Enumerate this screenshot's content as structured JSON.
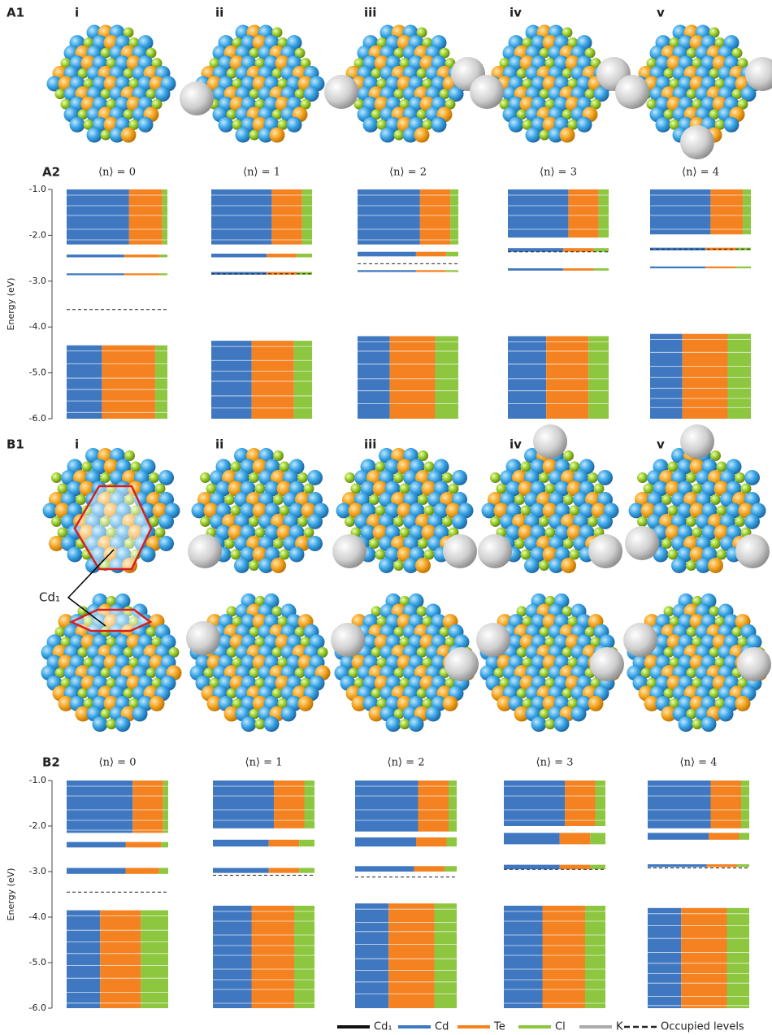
{
  "panel_labels": {
    "A1": "A1",
    "A2": "A2",
    "B1": "B1",
    "B2": "B2"
  },
  "structure_labels": [
    "i",
    "ii",
    "iii",
    "iv",
    "v"
  ],
  "site_label": "Cd₁",
  "chart_data": [
    {
      "type": "energy-levels",
      "ylabel": "Energy (eV)",
      "ylim": [
        -6,
        -1
      ],
      "yticks": [
        {
          "value": -1,
          "label": "-1.0"
        },
        {
          "value": -2,
          "label": "-2.0"
        },
        {
          "value": -3,
          "label": "-3.0"
        },
        {
          "value": -4,
          "label": "-4.0"
        },
        {
          "value": -5,
          "label": "-5.0"
        },
        {
          "value": -6,
          "label": "-6.0"
        }
      ],
      "panels": [
        {
          "title": "⟨n⟩ = 0",
          "occupied": -3.62,
          "blocks": [
            {
              "range": [
                -1.0,
                -2.2
              ],
              "fractions": [
                0.62,
                0.33,
                0.05
              ]
            },
            {
              "range": [
                -2.42,
                -2.48
              ],
              "fractions": [
                0.57,
                0.35,
                0.08
              ]
            },
            {
              "range": [
                -2.83,
                -2.87
              ],
              "fractions": [
                0.57,
                0.35,
                0.08
              ]
            },
            {
              "range": [
                -4.4,
                -6.0
              ],
              "fractions": [
                0.35,
                0.53,
                0.12
              ]
            }
          ]
        },
        {
          "title": "⟨n⟩ = 1",
          "occupied": -2.84,
          "blocks": [
            {
              "range": [
                -1.0,
                -2.2
              ],
              "fractions": [
                0.6,
                0.3,
                0.1
              ]
            },
            {
              "range": [
                -2.4,
                -2.48
              ],
              "fractions": [
                0.55,
                0.3,
                0.15
              ]
            },
            {
              "range": [
                -2.8,
                -2.86
              ],
              "fractions": [
                0.55,
                0.3,
                0.15
              ]
            },
            {
              "range": [
                -4.3,
                -6.0
              ],
              "fractions": [
                0.4,
                0.42,
                0.18
              ]
            }
          ]
        },
        {
          "title": "⟨n⟩ = 2",
          "occupied": -2.62,
          "blocks": [
            {
              "range": [
                -1.0,
                -2.2
              ],
              "fractions": [
                0.62,
                0.3,
                0.08
              ]
            },
            {
              "range": [
                -2.36,
                -2.46
              ],
              "fractions": [
                0.58,
                0.3,
                0.12
              ]
            },
            {
              "range": [
                -2.76,
                -2.8
              ],
              "fractions": [
                0.58,
                0.3,
                0.12
              ]
            },
            {
              "range": [
                -4.2,
                -6.0
              ],
              "fractions": [
                0.32,
                0.45,
                0.23
              ]
            }
          ]
        },
        {
          "title": "⟨n⟩ = 3",
          "occupied": -2.36,
          "blocks": [
            {
              "range": [
                -1.0,
                -2.05
              ],
              "fractions": [
                0.6,
                0.3,
                0.1
              ]
            },
            {
              "range": [
                -2.28,
                -2.36
              ],
              "fractions": [
                0.55,
                0.3,
                0.15
              ]
            },
            {
              "range": [
                -2.72,
                -2.77
              ],
              "fractions": [
                0.55,
                0.3,
                0.15
              ]
            },
            {
              "range": [
                -4.2,
                -6.0
              ],
              "fractions": [
                0.38,
                0.42,
                0.2
              ]
            }
          ]
        },
        {
          "title": "⟨n⟩ = 4",
          "occupied": -2.3,
          "blocks": [
            {
              "range": [
                -1.0,
                -1.98
              ],
              "fractions": [
                0.6,
                0.32,
                0.08
              ]
            },
            {
              "range": [
                -2.27,
                -2.33
              ],
              "fractions": [
                0.55,
                0.3,
                0.15
              ]
            },
            {
              "range": [
                -2.68,
                -2.72
              ],
              "fractions": [
                0.55,
                0.3,
                0.15
              ]
            },
            {
              "range": [
                -4.15,
                -6.0
              ],
              "fractions": [
                0.32,
                0.45,
                0.23
              ]
            }
          ]
        }
      ]
    },
    {
      "type": "energy-levels",
      "ylabel": "Energy (eV)",
      "ylim": [
        -6,
        -1
      ],
      "yticks": [
        {
          "value": -1,
          "label": "-1.0"
        },
        {
          "value": -2,
          "label": "-2.0"
        },
        {
          "value": -3,
          "label": "-3.0"
        },
        {
          "value": -4,
          "label": "-4.0"
        },
        {
          "value": -5,
          "label": "-5.0"
        },
        {
          "value": -6,
          "label": "-6.0"
        }
      ],
      "panels": [
        {
          "title": "⟨n⟩ = 0",
          "occupied": -3.45,
          "blocks": [
            {
              "range": [
                -1.0,
                -2.15
              ],
              "fractions": [
                0.65,
                0.3,
                0.05
              ]
            },
            {
              "range": [
                -2.35,
                -2.47
              ],
              "fractions": [
                0.58,
                0.35,
                0.07
              ]
            },
            {
              "range": [
                -2.92,
                -3.05
              ],
              "fractions": [
                0.58,
                0.33,
                0.09
              ]
            },
            {
              "range": [
                -3.85,
                -6.0
              ],
              "fractions": [
                0.33,
                0.4,
                0.27
              ]
            }
          ]
        },
        {
          "title": "⟨n⟩ = 1",
          "occupied": -3.08,
          "blocks": [
            {
              "range": [
                -1.0,
                -2.05
              ],
              "fractions": [
                0.6,
                0.3,
                0.1
              ]
            },
            {
              "range": [
                -2.3,
                -2.45
              ],
              "fractions": [
                0.55,
                0.3,
                0.15
              ]
            },
            {
              "range": [
                -2.92,
                -3.03
              ],
              "fractions": [
                0.55,
                0.3,
                0.15
              ]
            },
            {
              "range": [
                -3.75,
                -6.0
              ],
              "fractions": [
                0.38,
                0.42,
                0.2
              ]
            }
          ]
        },
        {
          "title": "⟨n⟩ = 2",
          "occupied": -3.12,
          "blocks": [
            {
              "range": [
                -1.0,
                -2.12
              ],
              "fractions": [
                0.62,
                0.3,
                0.08
              ]
            },
            {
              "range": [
                -2.25,
                -2.45
              ],
              "fractions": [
                0.6,
                0.3,
                0.1
              ]
            },
            {
              "range": [
                -2.88,
                -3.0
              ],
              "fractions": [
                0.58,
                0.3,
                0.12
              ]
            },
            {
              "range": [
                -3.7,
                -6.0
              ],
              "fractions": [
                0.33,
                0.45,
                0.22
              ]
            }
          ]
        },
        {
          "title": "⟨n⟩ = 3",
          "occupied": -2.95,
          "blocks": [
            {
              "range": [
                -1.0,
                -2.0
              ],
              "fractions": [
                0.6,
                0.3,
                0.1
              ]
            },
            {
              "range": [
                -2.15,
                -2.4
              ],
              "fractions": [
                0.55,
                0.3,
                0.15
              ]
            },
            {
              "range": [
                -2.85,
                -2.95
              ],
              "fractions": [
                0.55,
                0.3,
                0.15
              ]
            },
            {
              "range": [
                -3.75,
                -6.0
              ],
              "fractions": [
                0.38,
                0.42,
                0.2
              ]
            }
          ]
        },
        {
          "title": "⟨n⟩ = 4",
          "occupied": -2.92,
          "blocks": [
            {
              "range": [
                -1.0,
                -2.05
              ],
              "fractions": [
                0.62,
                0.3,
                0.08
              ]
            },
            {
              "range": [
                -2.15,
                -2.3
              ],
              "fractions": [
                0.6,
                0.3,
                0.1
              ]
            },
            {
              "range": [
                -2.84,
                -2.9
              ],
              "fractions": [
                0.58,
                0.3,
                0.12
              ]
            },
            {
              "range": [
                -3.8,
                -6.0
              ],
              "fractions": [
                0.33,
                0.45,
                0.22
              ]
            }
          ]
        }
      ]
    }
  ],
  "legend": [
    {
      "name": "Cd₁",
      "color": "#111111",
      "style": "solid"
    },
    {
      "name": "Cd",
      "color": "#3f78c1",
      "style": "solid"
    },
    {
      "name": "Te",
      "color": "#f58221",
      "style": "solid"
    },
    {
      "name": "Cl",
      "color": "#8dc63f",
      "style": "solid"
    },
    {
      "name": "K",
      "color": "#aaaaaa",
      "style": "solid"
    },
    {
      "name": "Occupied levels",
      "color": "#222222",
      "style": "dashed"
    }
  ]
}
